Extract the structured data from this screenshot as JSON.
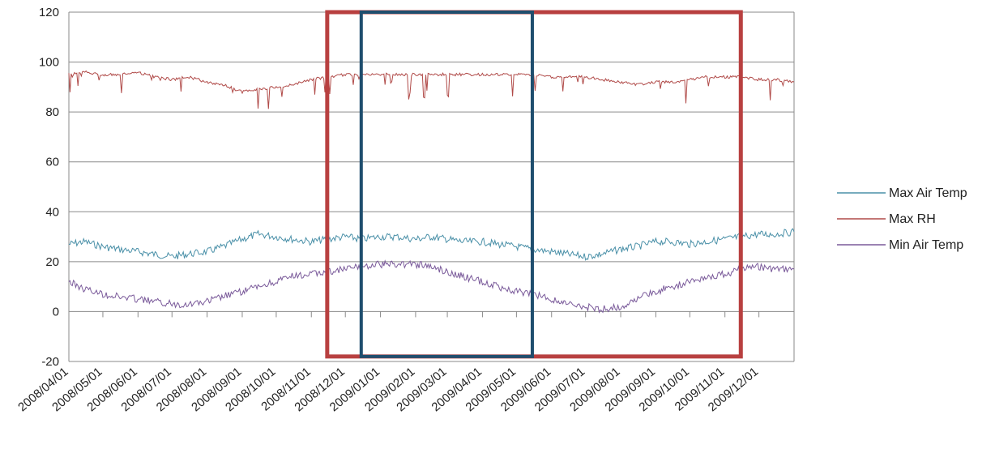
{
  "chart_data": {
    "type": "line",
    "title": "",
    "xlabel": "",
    "ylabel": "",
    "ylim": [
      -20,
      120
    ],
    "y_ticks": [
      120,
      100,
      80,
      60,
      40,
      20,
      0,
      -20
    ],
    "grid": "horizontal",
    "legend_position": "right",
    "x_tick_labels": [
      "2008/04/01",
      "2008/05/01",
      "2008/06/01",
      "2008/07/01",
      "2008/08/01",
      "2008/09/01",
      "2008/10/01",
      "2008/11/01",
      "2008/12/01",
      "2009/01/01",
      "2009/02/01",
      "2009/03/01",
      "2009/04/01",
      "2009/05/01",
      "2009/06/01",
      "2009/07/01",
      "2009/08/01",
      "2009/09/01",
      "2009/10/01",
      "2009/11/01",
      "2009/12/01"
    ],
    "x_start": "2008/04/01",
    "x_end": "2010/01/01",
    "series": [
      {
        "name": "Max Air Temp",
        "color": "#4a90a8",
        "points": [
          [
            "2008/04/01",
            27
          ],
          [
            "2008/04/15",
            28
          ],
          [
            "2008/05/01",
            26
          ],
          [
            "2008/05/15",
            25
          ],
          [
            "2008/06/01",
            24
          ],
          [
            "2008/06/15",
            23
          ],
          [
            "2008/07/01",
            22
          ],
          [
            "2008/07/15",
            23
          ],
          [
            "2008/08/01",
            24
          ],
          [
            "2008/08/15",
            26
          ],
          [
            "2008/09/01",
            29
          ],
          [
            "2008/09/15",
            31
          ],
          [
            "2008/10/01",
            30
          ],
          [
            "2008/10/15",
            29
          ],
          [
            "2008/11/01",
            28
          ],
          [
            "2008/11/15",
            29
          ],
          [
            "2008/12/01",
            30
          ],
          [
            "2008/12/15",
            29
          ],
          [
            "2009/01/01",
            30
          ],
          [
            "2009/01/15",
            30
          ],
          [
            "2009/02/01",
            29
          ],
          [
            "2009/02/15",
            30
          ],
          [
            "2009/03/01",
            29
          ],
          [
            "2009/03/15",
            28
          ],
          [
            "2009/04/01",
            28
          ],
          [
            "2009/04/15",
            27
          ],
          [
            "2009/05/01",
            26
          ],
          [
            "2009/05/15",
            25
          ],
          [
            "2009/06/01",
            24
          ],
          [
            "2009/06/15",
            23
          ],
          [
            "2009/07/01",
            22
          ],
          [
            "2009/07/15",
            23
          ],
          [
            "2009/08/01",
            25
          ],
          [
            "2009/08/15",
            26
          ],
          [
            "2009/09/01",
            28
          ],
          [
            "2009/09/15",
            28
          ],
          [
            "2009/10/01",
            27
          ],
          [
            "2009/10/15",
            28
          ],
          [
            "2009/11/01",
            29
          ],
          [
            "2009/11/15",
            30
          ],
          [
            "2009/12/01",
            31
          ],
          [
            "2009/12/15",
            31
          ],
          [
            "2010/01/01",
            32
          ]
        ]
      },
      {
        "name": "Max RH",
        "color": "#b04a48",
        "points": [
          [
            "2008/04/01",
            95
          ],
          [
            "2008/04/15",
            96
          ],
          [
            "2008/05/01",
            95
          ],
          [
            "2008/05/15",
            95
          ],
          [
            "2008/06/01",
            96
          ],
          [
            "2008/06/15",
            94
          ],
          [
            "2008/07/01",
            93
          ],
          [
            "2008/07/15",
            94
          ],
          [
            "2008/08/01",
            92
          ],
          [
            "2008/08/15",
            91
          ],
          [
            "2008/09/01",
            88
          ],
          [
            "2008/09/15",
            89
          ],
          [
            "2008/10/01",
            90
          ],
          [
            "2008/10/15",
            91
          ],
          [
            "2008/11/01",
            93
          ],
          [
            "2008/11/15",
            94
          ],
          [
            "2008/12/01",
            95
          ],
          [
            "2008/12/15",
            95
          ],
          [
            "2009/01/01",
            95
          ],
          [
            "2009/01/15",
            95
          ],
          [
            "2009/02/01",
            95
          ],
          [
            "2009/02/15",
            95
          ],
          [
            "2009/03/01",
            95
          ],
          [
            "2009/03/15",
            95
          ],
          [
            "2009/04/01",
            95
          ],
          [
            "2009/04/15",
            95
          ],
          [
            "2009/05/01",
            95
          ],
          [
            "2009/05/15",
            95
          ],
          [
            "2009/06/01",
            94
          ],
          [
            "2009/06/15",
            94
          ],
          [
            "2009/07/01",
            94
          ],
          [
            "2009/07/15",
            93
          ],
          [
            "2009/08/01",
            92
          ],
          [
            "2009/08/15",
            91
          ],
          [
            "2009/09/01",
            92
          ],
          [
            "2009/09/15",
            92
          ],
          [
            "2009/10/01",
            93
          ],
          [
            "2009/10/15",
            94
          ],
          [
            "2009/11/01",
            94
          ],
          [
            "2009/11/15",
            94
          ],
          [
            "2009/12/01",
            93
          ],
          [
            "2009/12/15",
            93
          ],
          [
            "2010/01/01",
            92
          ]
        ]
      },
      {
        "name": "Min Air Temp",
        "color": "#7a5a9a",
        "points": [
          [
            "2008/04/01",
            12
          ],
          [
            "2008/04/15",
            9
          ],
          [
            "2008/05/01",
            7
          ],
          [
            "2008/05/15",
            6
          ],
          [
            "2008/06/01",
            5
          ],
          [
            "2008/06/15",
            4
          ],
          [
            "2008/07/01",
            3
          ],
          [
            "2008/07/15",
            3
          ],
          [
            "2008/08/01",
            4
          ],
          [
            "2008/08/15",
            6
          ],
          [
            "2008/09/01",
            8
          ],
          [
            "2008/09/15",
            10
          ],
          [
            "2008/10/01",
            12
          ],
          [
            "2008/10/15",
            14
          ],
          [
            "2008/11/01",
            15
          ],
          [
            "2008/11/15",
            16
          ],
          [
            "2008/12/01",
            17
          ],
          [
            "2008/12/15",
            18
          ],
          [
            "2009/01/01",
            19
          ],
          [
            "2009/01/15",
            19
          ],
          [
            "2009/02/01",
            19
          ],
          [
            "2009/02/15",
            18
          ],
          [
            "2009/03/01",
            16
          ],
          [
            "2009/03/15",
            14
          ],
          [
            "2009/04/01",
            12
          ],
          [
            "2009/04/15",
            10
          ],
          [
            "2009/05/01",
            8
          ],
          [
            "2009/05/15",
            7
          ],
          [
            "2009/06/01",
            5
          ],
          [
            "2009/06/15",
            3
          ],
          [
            "2009/07/01",
            2
          ],
          [
            "2009/07/15",
            1
          ],
          [
            "2009/08/01",
            2
          ],
          [
            "2009/08/15",
            5
          ],
          [
            "2009/09/01",
            8
          ],
          [
            "2009/09/15",
            10
          ],
          [
            "2009/10/01",
            12
          ],
          [
            "2009/10/15",
            14
          ],
          [
            "2009/11/01",
            15
          ],
          [
            "2009/11/15",
            17
          ],
          [
            "2009/12/01",
            18
          ],
          [
            "2009/12/15",
            17
          ],
          [
            "2010/01/01",
            17
          ]
        ]
      }
    ],
    "annotations": [
      {
        "kind": "rectangle",
        "color": "#b84040",
        "x_start": "2008/11/15",
        "x_end": "2009/11/15",
        "y_start": -18,
        "y_end": 120
      },
      {
        "kind": "rectangle",
        "color": "#1f4e6e",
        "x_start": "2008/12/15",
        "x_end": "2009/05/15",
        "y_start": -18,
        "y_end": 120
      }
    ]
  }
}
